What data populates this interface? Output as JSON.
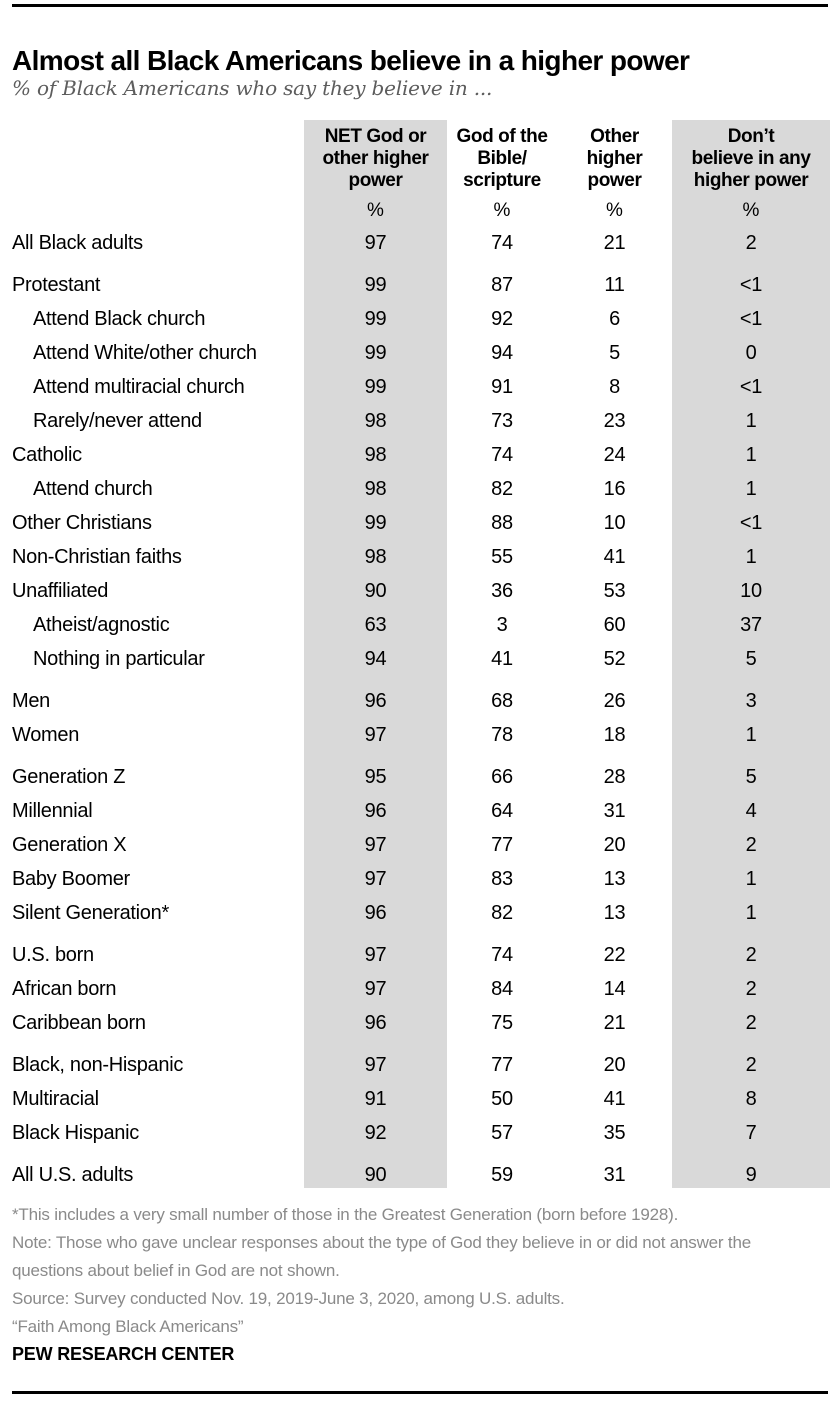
{
  "chart_data": {
    "type": "table",
    "title": "Almost all Black Americans believe in a higher power",
    "subtitle": "% of Black Americans who say they believe in ...",
    "unit": "%",
    "columns": [
      {
        "label": "NET God or\nother higher\npower",
        "shaded": true
      },
      {
        "label": "God of the\nBible/\nscripture",
        "shaded": false
      },
      {
        "label": "Other\nhigher\npower",
        "shaded": false
      },
      {
        "label": "Don’t\nbelieve in any\nhigher power",
        "shaded": true
      }
    ],
    "rows": [
      {
        "label": "All Black adults",
        "indent": false,
        "gap_before": false,
        "values": [
          "97",
          "74",
          "21",
          "2"
        ]
      },
      {
        "label": "Protestant",
        "indent": false,
        "gap_before": true,
        "values": [
          "99",
          "87",
          "11",
          "<1"
        ]
      },
      {
        "label": "Attend Black church",
        "indent": true,
        "gap_before": false,
        "values": [
          "99",
          "92",
          "6",
          "<1"
        ]
      },
      {
        "label": "Attend White/other church",
        "indent": true,
        "gap_before": false,
        "values": [
          "99",
          "94",
          "5",
          "0"
        ]
      },
      {
        "label": "Attend multiracial church",
        "indent": true,
        "gap_before": false,
        "values": [
          "99",
          "91",
          "8",
          "<1"
        ]
      },
      {
        "label": "Rarely/never attend",
        "indent": true,
        "gap_before": false,
        "values": [
          "98",
          "73",
          "23",
          "1"
        ]
      },
      {
        "label": "Catholic",
        "indent": false,
        "gap_before": false,
        "values": [
          "98",
          "74",
          "24",
          "1"
        ]
      },
      {
        "label": "Attend church",
        "indent": true,
        "gap_before": false,
        "values": [
          "98",
          "82",
          "16",
          "1"
        ]
      },
      {
        "label": "Other Christians",
        "indent": false,
        "gap_before": false,
        "values": [
          "99",
          "88",
          "10",
          "<1"
        ]
      },
      {
        "label": "Non-Christian faiths",
        "indent": false,
        "gap_before": false,
        "values": [
          "98",
          "55",
          "41",
          "1"
        ]
      },
      {
        "label": "Unaffiliated",
        "indent": false,
        "gap_before": false,
        "values": [
          "90",
          "36",
          "53",
          "10"
        ]
      },
      {
        "label": "Atheist/agnostic",
        "indent": true,
        "gap_before": false,
        "values": [
          "63",
          "3",
          "60",
          "37"
        ]
      },
      {
        "label": "Nothing in particular",
        "indent": true,
        "gap_before": false,
        "values": [
          "94",
          "41",
          "52",
          "5"
        ]
      },
      {
        "label": "Men",
        "indent": false,
        "gap_before": true,
        "values": [
          "96",
          "68",
          "26",
          "3"
        ]
      },
      {
        "label": "Women",
        "indent": false,
        "gap_before": false,
        "values": [
          "97",
          "78",
          "18",
          "1"
        ]
      },
      {
        "label": "Generation Z",
        "indent": false,
        "gap_before": true,
        "values": [
          "95",
          "66",
          "28",
          "5"
        ]
      },
      {
        "label": "Millennial",
        "indent": false,
        "gap_before": false,
        "values": [
          "96",
          "64",
          "31",
          "4"
        ]
      },
      {
        "label": "Generation X",
        "indent": false,
        "gap_before": false,
        "values": [
          "97",
          "77",
          "20",
          "2"
        ]
      },
      {
        "label": "Baby Boomer",
        "indent": false,
        "gap_before": false,
        "values": [
          "97",
          "83",
          "13",
          "1"
        ]
      },
      {
        "label": "Silent Generation*",
        "indent": false,
        "gap_before": false,
        "values": [
          "96",
          "82",
          "13",
          "1"
        ]
      },
      {
        "label": "U.S. born",
        "indent": false,
        "gap_before": true,
        "values": [
          "97",
          "74",
          "22",
          "2"
        ]
      },
      {
        "label": "African born",
        "indent": false,
        "gap_before": false,
        "values": [
          "97",
          "84",
          "14",
          "2"
        ]
      },
      {
        "label": "Caribbean born",
        "indent": false,
        "gap_before": false,
        "values": [
          "96",
          "75",
          "21",
          "2"
        ]
      },
      {
        "label": "Black, non-Hispanic",
        "indent": false,
        "gap_before": true,
        "values": [
          "97",
          "77",
          "20",
          "2"
        ]
      },
      {
        "label": "Multiracial",
        "indent": false,
        "gap_before": false,
        "values": [
          "91",
          "50",
          "41",
          "8"
        ]
      },
      {
        "label": "Black Hispanic",
        "indent": false,
        "gap_before": false,
        "values": [
          "92",
          "57",
          "35",
          "7"
        ]
      },
      {
        "label": "All U.S. adults",
        "indent": false,
        "gap_before": true,
        "values": [
          "90",
          "59",
          "31",
          "9"
        ]
      }
    ],
    "layout_hints": {
      "shaded_columns": [
        0,
        3
      ],
      "values_align": "center"
    }
  },
  "footnotes": [
    "*This includes a very small number of those in the Greatest Generation (born before 1928).",
    "Note: Those who gave unclear responses about the type of God they believe in or did not answer the questions about belief in God are not shown.",
    "Source: Survey conducted Nov. 19, 2019-June 3, 2020, among U.S. adults.",
    "“Faith Among Black Americans”"
  ],
  "branding": {
    "label": "PEW RESEARCH CENTER"
  },
  "colors": {
    "shaded_column_bg": "#d9d9d9",
    "text": "#000000",
    "subtitle_text": "#5d5d5d",
    "footnote_text": "#8a8a8a",
    "rule": "#000000"
  }
}
